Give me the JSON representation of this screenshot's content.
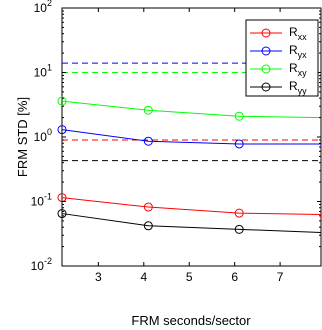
{
  "chart_data": {
    "type": "line",
    "x_label": "FRM seconds/sector",
    "y_label": "FRM STD [%]",
    "y_scale": "log",
    "xlim": [
      2.2,
      7.9
    ],
    "ylim": [
      0.01,
      100
    ],
    "x_ticks": [
      3,
      4,
      5,
      6,
      7
    ],
    "y_ticks": [
      {
        "value": 0.01,
        "base": "10",
        "exp": "-2"
      },
      {
        "value": 0.1,
        "base": "10",
        "exp": "-1"
      },
      {
        "value": 1,
        "base": "10",
        "exp": "0"
      },
      {
        "value": 10,
        "base": "10",
        "exp": "1"
      },
      {
        "value": 100,
        "base": "10",
        "exp": "2"
      }
    ],
    "grid": false,
    "legend_position": "top-right",
    "series": [
      {
        "name": "R",
        "sub": "xx",
        "color": "#ff0000",
        "x": [
          2.2,
          4.1,
          6.1,
          7.9
        ],
        "y": [
          0.115,
          0.082,
          0.066,
          0.063
        ],
        "markers_at": [
          2.2,
          4.1,
          6.1
        ],
        "hline": 0.9,
        "hline_color": "#ff0000"
      },
      {
        "name": "R",
        "sub": "yx",
        "color": "#0000ff",
        "x": [
          2.2,
          4.1,
          6.1,
          7.9
        ],
        "y": [
          1.3,
          0.86,
          0.78,
          0.78
        ],
        "markers_at": [
          2.2,
          4.1,
          6.1
        ],
        "hline": 14,
        "hline_color": "#0000ff"
      },
      {
        "name": "R",
        "sub": "xy",
        "color": "#00ff00",
        "x": [
          2.2,
          4.1,
          6.1,
          7.9
        ],
        "y": [
          3.6,
          2.6,
          2.1,
          2.0
        ],
        "markers_at": [
          2.2,
          4.1,
          6.1
        ],
        "hline": 10,
        "hline_color": "#00ff00"
      },
      {
        "name": "R",
        "sub": "yy",
        "color": "#000000",
        "x": [
          2.2,
          4.1,
          6.1,
          7.9
        ],
        "y": [
          0.065,
          0.042,
          0.037,
          0.033
        ],
        "markers_at": [
          2.2,
          4.1,
          6.1
        ],
        "hline": 0.43,
        "hline_color": "#000000"
      }
    ]
  }
}
